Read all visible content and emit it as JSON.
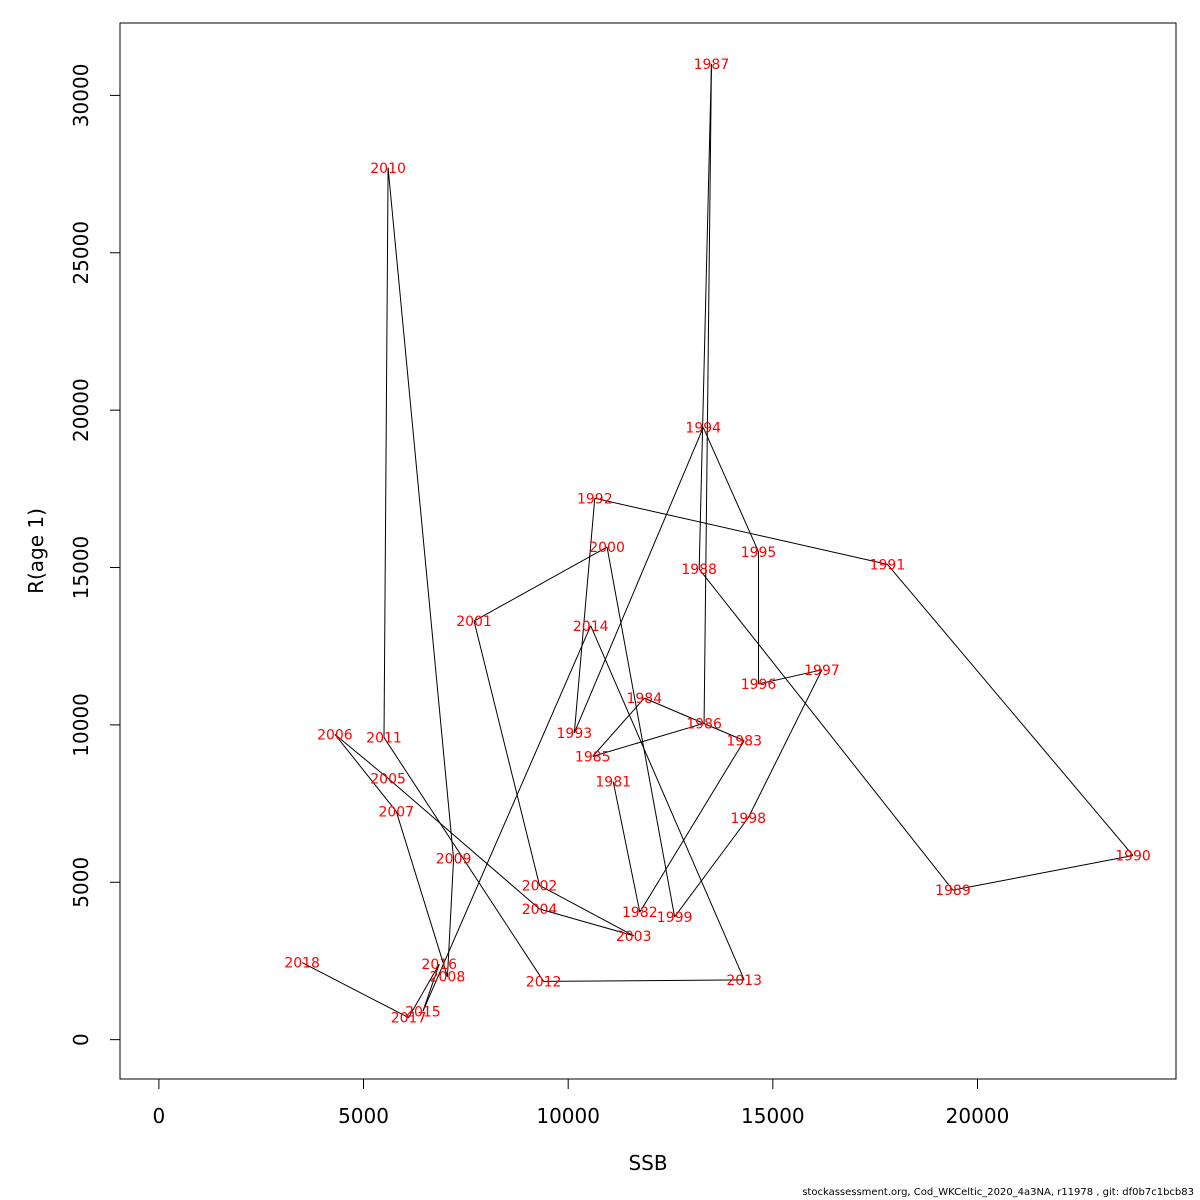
{
  "chart_data": {
    "type": "line",
    "xlabel": "SSB",
    "ylabel": "R(age 1)",
    "xlim": [
      -950,
      24850
    ],
    "ylim": [
      -1250,
      32300
    ],
    "xticks": [
      0,
      5000,
      10000,
      15000,
      20000
    ],
    "xtick_labels": [
      "0",
      "5000",
      "10000",
      "15000",
      "20000"
    ],
    "yticks": [
      0,
      5000,
      10000,
      15000,
      20000,
      25000,
      30000
    ],
    "ytick_labels": [
      "0",
      "5000",
      "10000",
      "15000",
      "20000",
      "25000",
      "30000"
    ],
    "grid": false,
    "label_color": "#ff0000",
    "line_color": "#000000",
    "points": [
      {
        "year": "1981",
        "x": 11100,
        "y": 8200
      },
      {
        "year": "1982",
        "x": 11750,
        "y": 4050
      },
      {
        "year": "1983",
        "x": 14300,
        "y": 9500
      },
      {
        "year": "1984",
        "x": 11860,
        "y": 10850
      },
      {
        "year": "1985",
        "x": 10600,
        "y": 9000
      },
      {
        "year": "1986",
        "x": 13320,
        "y": 10050
      },
      {
        "year": "1987",
        "x": 13500,
        "y": 31000
      },
      {
        "year": "1988",
        "x": 13200,
        "y": 14950
      },
      {
        "year": "1989",
        "x": 19400,
        "y": 4750
      },
      {
        "year": "1990",
        "x": 23800,
        "y": 5850
      },
      {
        "year": "1991",
        "x": 17800,
        "y": 15100
      },
      {
        "year": "1992",
        "x": 10650,
        "y": 17200
      },
      {
        "year": "1993",
        "x": 10150,
        "y": 9750
      },
      {
        "year": "1994",
        "x": 13300,
        "y": 19450
      },
      {
        "year": "1995",
        "x": 14650,
        "y": 15500
      },
      {
        "year": "1996",
        "x": 14650,
        "y": 11300
      },
      {
        "year": "1997",
        "x": 16200,
        "y": 11750
      },
      {
        "year": "1998",
        "x": 14400,
        "y": 7050
      },
      {
        "year": "1999",
        "x": 12600,
        "y": 3900
      },
      {
        "year": "2000",
        "x": 10950,
        "y": 15650
      },
      {
        "year": "2001",
        "x": 7700,
        "y": 13300
      },
      {
        "year": "2002",
        "x": 9300,
        "y": 4900
      },
      {
        "year": "2003",
        "x": 11600,
        "y": 3300
      },
      {
        "year": "2004",
        "x": 9300,
        "y": 4150
      },
      {
        "year": "2005",
        "x": 5600,
        "y": 8300
      },
      {
        "year": "2006",
        "x": 4300,
        "y": 9700
      },
      {
        "year": "2007",
        "x": 5800,
        "y": 7250
      },
      {
        "year": "2008",
        "x": 7050,
        "y": 2000
      },
      {
        "year": "2009",
        "x": 7200,
        "y": 5750
      },
      {
        "year": "2010",
        "x": 5600,
        "y": 27700
      },
      {
        "year": "2011",
        "x": 5500,
        "y": 9600
      },
      {
        "year": "2012",
        "x": 9400,
        "y": 1850
      },
      {
        "year": "2013",
        "x": 14300,
        "y": 1900
      },
      {
        "year": "2014",
        "x": 10550,
        "y": 13150
      },
      {
        "year": "2015",
        "x": 6450,
        "y": 900
      },
      {
        "year": "2016",
        "x": 6850,
        "y": 2400
      },
      {
        "year": "2017",
        "x": 6100,
        "y": 700
      },
      {
        "year": "2018",
        "x": 3500,
        "y": 2450
      }
    ]
  },
  "footer": "stockassessment.org, Cod_WKCeltic_2020_4a3NA, r11978 , git: df0b7c1bcb83"
}
